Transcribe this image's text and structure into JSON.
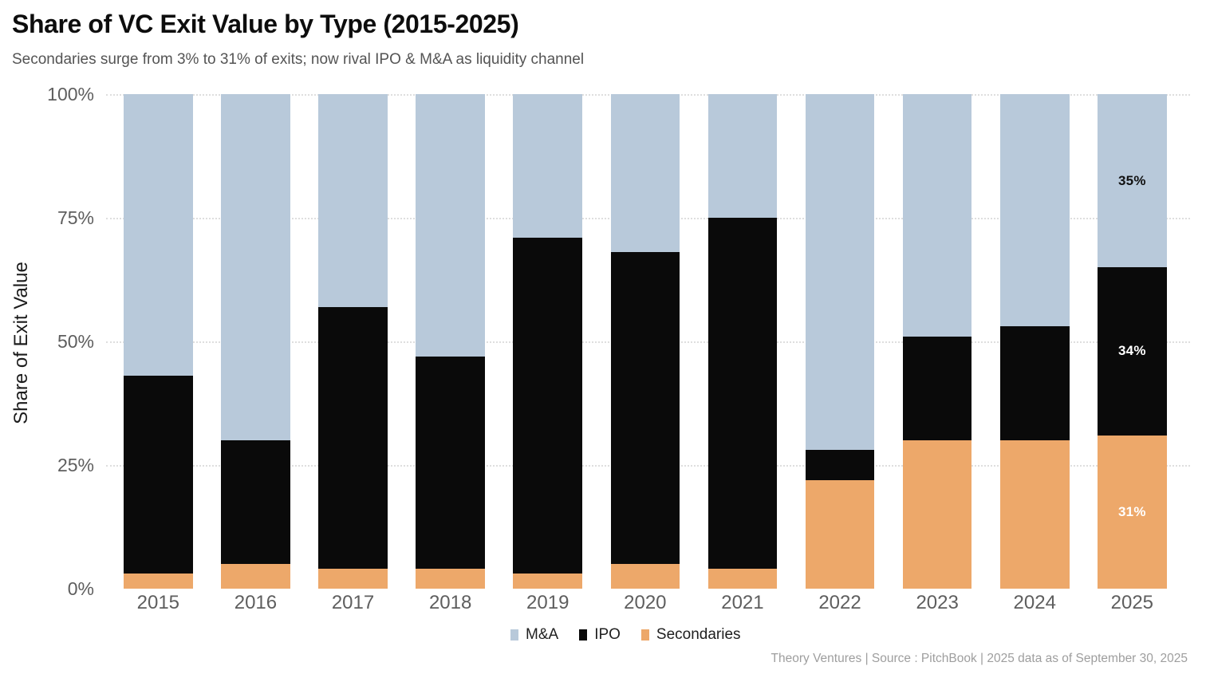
{
  "header": {
    "title": "Share of VC Exit Value by Type (2015-2025)",
    "subtitle": "Secondaries surge from 3% to 31% of exits; now rival IPO & M&A as liquidity channel"
  },
  "chart_data": {
    "type": "bar",
    "stacked": true,
    "units": "percent of total",
    "title": "Share of VC Exit Value by Type (2015-2025)",
    "xlabel": "",
    "ylabel": "Share of Exit Value",
    "ylim": [
      0,
      100
    ],
    "grid": "horizontal-dotted",
    "legend_position": "bottom-center",
    "categories": [
      "2015",
      "2016",
      "2017",
      "2018",
      "2019",
      "2020",
      "2021",
      "2022",
      "2023",
      "2024",
      "2025"
    ],
    "series": [
      {
        "name": "M&A",
        "color": "#b8c9da",
        "values": [
          57,
          70,
          43,
          53,
          29,
          32,
          25,
          72,
          49,
          47,
          35
        ]
      },
      {
        "name": "IPO",
        "color": "#0a0a0a",
        "values": [
          40,
          25,
          53,
          43,
          68,
          63,
          71,
          6,
          21,
          23,
          34
        ]
      },
      {
        "name": "Secondaries",
        "color": "#eda86a",
        "values": [
          3,
          5,
          4,
          4,
          3,
          5,
          4,
          22,
          30,
          30,
          31
        ]
      }
    ],
    "yticks": [
      {
        "label": "0%",
        "value": 0
      },
      {
        "label": "25%",
        "value": 25
      },
      {
        "label": "50%",
        "value": 50
      },
      {
        "label": "75%",
        "value": 75
      },
      {
        "label": "100%",
        "value": 100
      }
    ],
    "gridline_values": [
      25,
      50,
      75,
      100
    ],
    "annotations": [
      {
        "category": "2025",
        "series": "M&A",
        "text": "35%",
        "text_color": "#111111"
      },
      {
        "category": "2025",
        "series": "IPO",
        "text": "34%",
        "text_color": "#ffffff"
      },
      {
        "category": "2025",
        "series": "Secondaries",
        "text": "31%",
        "text_color": "#ffffff"
      }
    ]
  },
  "legend": {
    "items": [
      {
        "label": "M&A",
        "color": "#b8c9da"
      },
      {
        "label": "IPO",
        "color": "#0a0a0a"
      },
      {
        "label": "Secondaries",
        "color": "#eda86a"
      }
    ]
  },
  "footer": {
    "credit": "Theory Ventures | Source : PitchBook | 2025 data as of September 30, 2025"
  }
}
